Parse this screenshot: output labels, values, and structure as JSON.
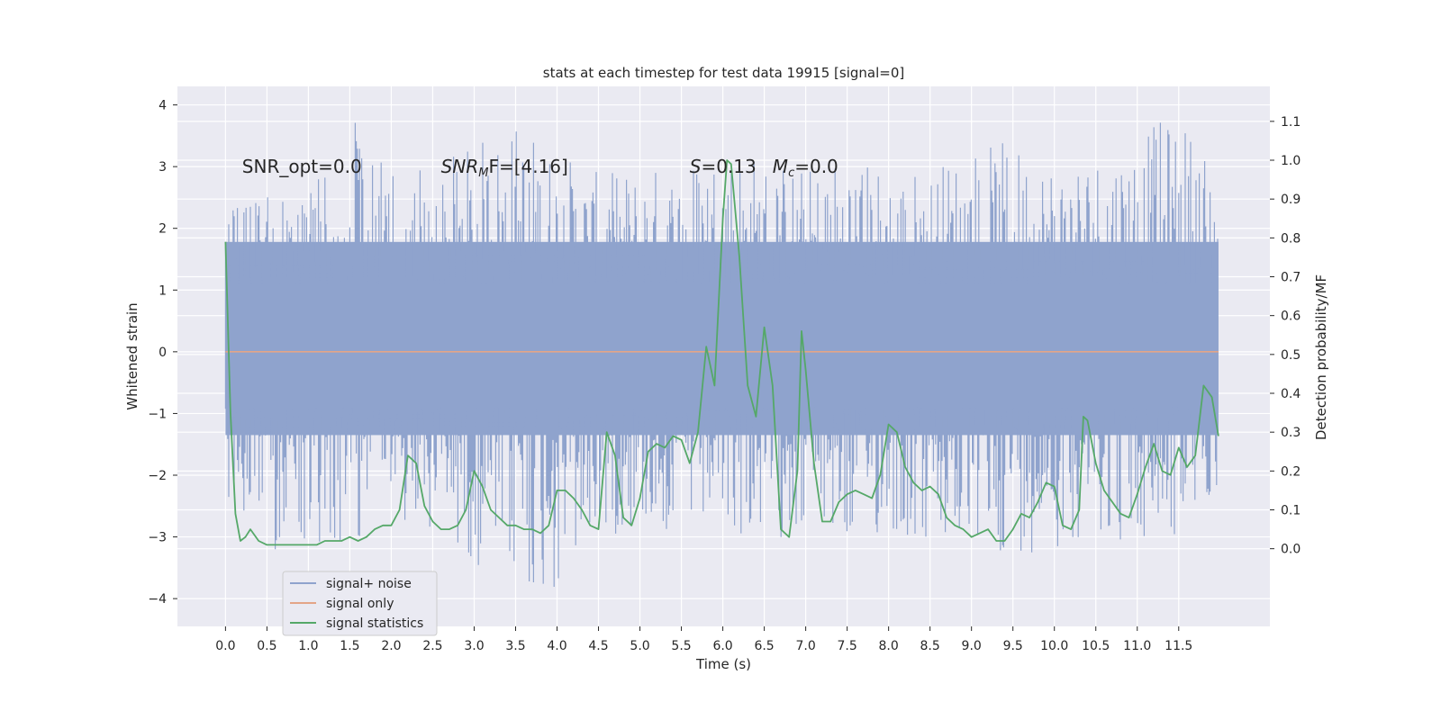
{
  "chart_data": {
    "type": "line",
    "title": "stats at each timestep for test data 19915 [signal=0]",
    "xlabel": "Time (s)",
    "ylabel": "Whitened strain",
    "y2label": "Detection probability/MF",
    "xlim": [
      -0.58,
      12.6
    ],
    "ylim": [
      -4.45,
      4.3
    ],
    "y2lim": [
      -0.2,
      1.19
    ],
    "x_ticks": [
      0.0,
      0.5,
      1.0,
      1.5,
      2.0,
      2.5,
      3.0,
      3.5,
      4.0,
      4.5,
      5.0,
      5.5,
      6.0,
      6.5,
      7.0,
      7.5,
      8.0,
      8.5,
      9.0,
      9.5,
      10.0,
      10.5,
      11.0,
      11.5
    ],
    "x_tick_labels": [
      "0.0",
      "0.5",
      "1.0",
      "1.5",
      "2.0",
      "2.5",
      "3.0",
      "3.5",
      "4.0",
      "4.5",
      "5.0",
      "5.5",
      "6.0",
      "6.5",
      "7.0",
      "7.5",
      "8.0",
      "8.5",
      "9.0",
      "9.5",
      "10.0",
      "10.5",
      "11.0",
      "11.5"
    ],
    "y_ticks": [
      -4,
      -3,
      -2,
      -1,
      0,
      1,
      2,
      3,
      4
    ],
    "y_tick_labels": [
      "−4",
      "−3",
      "−2",
      "−1",
      "0",
      "1",
      "2",
      "3",
      "4"
    ],
    "y2_ticks": [
      0.0,
      0.1,
      0.2,
      0.3,
      0.4,
      0.5,
      0.6,
      0.7,
      0.8,
      0.9,
      1.0,
      1.1
    ],
    "y2_tick_labels": [
      "0.0",
      "0.1",
      "0.2",
      "0.3",
      "0.4",
      "0.5",
      "0.6",
      "0.7",
      "0.8",
      "0.9",
      "1.0",
      "1.1"
    ],
    "grid": true,
    "legend_position": "lower-left",
    "series": [
      {
        "name": "signal+ noise",
        "axis": "left",
        "color": "#8fa3cd",
        "note_style": "dense noise band",
        "x_range": [
          0.0,
          11.98
        ],
        "band": [
          -1.35,
          1.78
        ],
        "envelope_x": [
          0.0,
          0.2,
          0.5,
          1.0,
          1.5,
          2.0,
          2.5,
          3.0,
          3.5,
          4.0,
          4.5,
          5.0,
          5.5,
          6.0,
          6.5,
          7.0,
          7.5,
          8.0,
          8.5,
          9.0,
          9.5,
          10.0,
          10.5,
          11.0,
          11.5,
          11.98
        ],
        "envelope_max": [
          2.9,
          2.4,
          2.7,
          2.5,
          3.85,
          2.9,
          3.0,
          3.4,
          3.8,
          3.3,
          2.9,
          3.0,
          3.1,
          3.5,
          3.2,
          3.0,
          3.3,
          3.0,
          3.0,
          3.4,
          3.4,
          3.2,
          3.3,
          3.6,
          3.85,
          3.2
        ],
        "envelope_min": [
          -2.45,
          -2.7,
          -3.45,
          -3.1,
          -3.05,
          -2.8,
          -2.9,
          -3.45,
          -3.9,
          -4.1,
          -3.1,
          -2.85,
          -3.1,
          -3.0,
          -3.1,
          -2.9,
          -3.25,
          -3.0,
          -3.3,
          -3.3,
          -3.3,
          -3.2,
          -2.9,
          -3.3,
          -3.1,
          -2.2
        ]
      },
      {
        "name": "signal only",
        "axis": "left",
        "color": "#e3a587",
        "x": [
          0.0,
          11.98
        ],
        "y": [
          0.0,
          0.0
        ]
      },
      {
        "name": "signal statistics",
        "axis": "right",
        "color": "#55a868",
        "x": [
          0.0,
          0.06,
          0.12,
          0.18,
          0.24,
          0.3,
          0.4,
          0.5,
          0.6,
          0.7,
          0.8,
          0.9,
          1.0,
          1.1,
          1.2,
          1.3,
          1.4,
          1.5,
          1.6,
          1.7,
          1.8,
          1.9,
          2.0,
          2.1,
          2.2,
          2.3,
          2.4,
          2.5,
          2.6,
          2.7,
          2.8,
          2.9,
          3.0,
          3.1,
          3.2,
          3.3,
          3.4,
          3.5,
          3.6,
          3.7,
          3.8,
          3.9,
          4.0,
          4.1,
          4.2,
          4.3,
          4.4,
          4.5,
          4.6,
          4.7,
          4.8,
          4.9,
          5.0,
          5.1,
          5.2,
          5.3,
          5.4,
          5.5,
          5.6,
          5.7,
          5.8,
          5.9,
          6.0,
          6.05,
          6.1,
          6.2,
          6.3,
          6.4,
          6.5,
          6.6,
          6.7,
          6.8,
          6.9,
          6.95,
          7.0,
          7.1,
          7.2,
          7.3,
          7.4,
          7.5,
          7.6,
          7.7,
          7.8,
          7.9,
          8.0,
          8.1,
          8.2,
          8.3,
          8.4,
          8.5,
          8.6,
          8.7,
          8.8,
          8.9,
          9.0,
          9.1,
          9.2,
          9.3,
          9.4,
          9.5,
          9.6,
          9.7,
          9.8,
          9.9,
          10.0,
          10.1,
          10.2,
          10.3,
          10.35,
          10.4,
          10.5,
          10.6,
          10.7,
          10.8,
          10.9,
          11.0,
          11.1,
          11.2,
          11.3,
          11.4,
          11.5,
          11.6,
          11.7,
          11.8,
          11.9,
          11.98
        ],
        "y": [
          0.79,
          0.35,
          0.09,
          0.02,
          0.03,
          0.05,
          0.02,
          0.01,
          0.01,
          0.01,
          0.01,
          0.01,
          0.01,
          0.01,
          0.02,
          0.02,
          0.02,
          0.03,
          0.02,
          0.03,
          0.05,
          0.06,
          0.06,
          0.1,
          0.24,
          0.22,
          0.11,
          0.07,
          0.05,
          0.05,
          0.06,
          0.1,
          0.2,
          0.16,
          0.1,
          0.08,
          0.06,
          0.06,
          0.05,
          0.05,
          0.04,
          0.06,
          0.15,
          0.15,
          0.13,
          0.1,
          0.06,
          0.05,
          0.3,
          0.24,
          0.08,
          0.06,
          0.13,
          0.25,
          0.27,
          0.26,
          0.29,
          0.28,
          0.22,
          0.3,
          0.52,
          0.42,
          0.85,
          1.0,
          0.99,
          0.75,
          0.42,
          0.34,
          0.57,
          0.42,
          0.05,
          0.03,
          0.2,
          0.56,
          0.46,
          0.22,
          0.07,
          0.07,
          0.12,
          0.14,
          0.15,
          0.14,
          0.13,
          0.19,
          0.32,
          0.3,
          0.21,
          0.17,
          0.15,
          0.16,
          0.14,
          0.08,
          0.06,
          0.05,
          0.03,
          0.04,
          0.05,
          0.02,
          0.02,
          0.05,
          0.09,
          0.08,
          0.12,
          0.17,
          0.16,
          0.06,
          0.05,
          0.1,
          0.34,
          0.33,
          0.22,
          0.15,
          0.12,
          0.09,
          0.08,
          0.14,
          0.21,
          0.27,
          0.2,
          0.19,
          0.26,
          0.21,
          0.24,
          0.42,
          0.39,
          0.29
        ]
      }
    ],
    "annotations": [
      {
        "text": "SNR_opt=0.0",
        "x": 0.2,
        "y": 3.0
      },
      {
        "text": "SNR",
        "sub": "M",
        "rest": "F=[4.16]",
        "x": 2.6,
        "y": 3.0
      },
      {
        "text": "S",
        "rest": "=0.13",
        "x": 5.6,
        "y": 3.0
      },
      {
        "text": "M",
        "sub": "c",
        "rest": "=0.0",
        "x": 6.6,
        "y": 3.0
      }
    ]
  }
}
